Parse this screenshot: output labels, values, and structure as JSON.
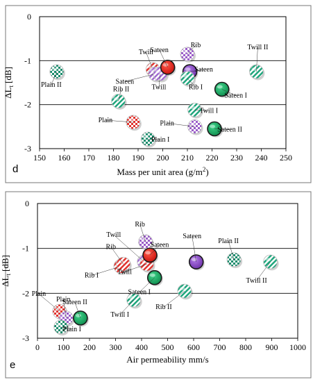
{
  "chart_data": [
    {
      "type": "scatter",
      "panel_label": "d",
      "xlabel": "Mass per unit area (g/m",
      "xlabel_sup": "2",
      "xlabel_end": ")",
      "ylabel": "ΔL",
      "ylabel_sub": "t",
      "ylabel_unit": "[dB]",
      "xlim": [
        150,
        250
      ],
      "ylim": [
        -3,
        0
      ],
      "xticks": [
        "150",
        "160",
        "170",
        "180",
        "190",
        "200",
        "210",
        "220",
        "230",
        "240",
        "250"
      ],
      "yticks": [
        "0",
        "-1",
        "-2",
        "-3"
      ],
      "grid": "horizontal",
      "points": [
        {
          "label": "Plain II",
          "x": 157,
          "y": -1.25,
          "pattern": "check-teal",
          "tx": -8,
          "ty": 22
        },
        {
          "label": "Rib II",
          "x": 182,
          "y": -1.92,
          "pattern": "stripe-teal",
          "tx": 4,
          "ty": -14
        },
        {
          "label": "Plain",
          "x": 188,
          "y": -2.4,
          "pattern": "check-red",
          "tx": -40,
          "ty": 0
        },
        {
          "label": "Plain I",
          "x": 194,
          "y": -2.78,
          "pattern": "check-teal",
          "tx": 18,
          "ty": 4
        },
        {
          "label": "Twill",
          "x": 196,
          "y": -1.2,
          "pattern": "stripe-red",
          "tx": -10,
          "ty": -22
        },
        {
          "label": "Sateen",
          "x": 197,
          "y": -1.3,
          "pattern": "stripe-purple",
          "tx": -44,
          "ty": 14
        },
        {
          "label": "Twill",
          "x": 199,
          "y": -1.3,
          "pattern": "stripe-purple",
          "tx": -2,
          "ty": 22
        },
        {
          "label": "Sateen",
          "x": 202,
          "y": -1.15,
          "pattern": "solid-red",
          "tx": -12,
          "ty": -22
        },
        {
          "label": "Rib",
          "x": 210,
          "y": -0.85,
          "pattern": "check-purple",
          "tx": 12,
          "ty": -10
        },
        {
          "label": "Sateen",
          "x": 211,
          "y": -1.25,
          "pattern": "solid-purple",
          "tx": 20,
          "ty": 0
        },
        {
          "label": "Rib I",
          "x": 210,
          "y": -1.4,
          "pattern": "stripe-teal",
          "tx": 12,
          "ty": 16
        },
        {
          "label": "Twill I",
          "x": 213,
          "y": -2.12,
          "pattern": "stripe-teal",
          "tx": 20,
          "ty": 4
        },
        {
          "label": "Plain",
          "x": 213,
          "y": -2.5,
          "pattern": "check-purple",
          "tx": -40,
          "ty": -2
        },
        {
          "label": "Sateen II",
          "x": 221,
          "y": -2.55,
          "pattern": "solid-green",
          "tx": 22,
          "ty": 4
        },
        {
          "label": "Sateen I",
          "x": 224,
          "y": -1.65,
          "pattern": "solid-green",
          "tx": 20,
          "ty": 12
        },
        {
          "label": "Twill II",
          "x": 238,
          "y": -1.25,
          "pattern": "stripe-teal",
          "tx": 2,
          "ty": -32
        }
      ]
    },
    {
      "type": "scatter",
      "panel_label": "e",
      "xlabel": "Air permeability mm/s",
      "ylabel": "ΔL",
      "ylabel_sub": "t",
      "ylabel_unit": "[dB]",
      "xlim": [
        0,
        1000
      ],
      "ylim": [
        -3,
        0
      ],
      "xticks": [
        "0",
        "100",
        "200",
        "300",
        "400",
        "500",
        "600",
        "700",
        "800",
        "900",
        "1000"
      ],
      "yticks": [
        "0",
        "-1",
        "-2",
        "-3"
      ],
      "grid": "horizontal",
      "points": [
        {
          "label": "Plain",
          "x": 85,
          "y": -2.4,
          "pattern": "check-red",
          "tx": -30,
          "ty": -22
        },
        {
          "label": "Plain",
          "x": 110,
          "y": -2.55,
          "pattern": "check-purple",
          "tx": -4,
          "ty": -24
        },
        {
          "label": "Plain I",
          "x": 90,
          "y": -2.75,
          "pattern": "check-teal",
          "tx": 16,
          "ty": 6
        },
        {
          "label": "Sateen II",
          "x": 165,
          "y": -2.55,
          "pattern": "solid-green",
          "tx": -8,
          "ty": -20
        },
        {
          "label": "Rib I",
          "x": 320,
          "y": -1.4,
          "pattern": "stripe-red",
          "tx": -42,
          "ty": 16
        },
        {
          "label": "Rib",
          "x": 330,
          "y": -1.35,
          "pattern": "stripe-red",
          "tx": -18,
          "ty": -22
        },
        {
          "label": "Twill I",
          "x": 370,
          "y": -2.15,
          "pattern": "stripe-teal",
          "tx": -20,
          "ty": 24
        },
        {
          "label": "Rib",
          "x": 415,
          "y": -0.85,
          "pattern": "check-purple",
          "tx": -8,
          "ty": -22
        },
        {
          "label": "Twill",
          "x": 410,
          "y": -1.3,
          "pattern": "stripe-purple",
          "tx": -44,
          "ty": -36
        },
        {
          "label": "Twill",
          "x": 420,
          "y": -1.35,
          "pattern": "stripe-red",
          "tx": -32,
          "ty": 14
        },
        {
          "label": "Sateen",
          "x": 432,
          "y": -1.15,
          "pattern": "solid-red",
          "tx": 14,
          "ty": -12
        },
        {
          "label": "Sateen I",
          "x": 450,
          "y": -1.65,
          "pattern": "solid-green",
          "tx": -22,
          "ty": 24
        },
        {
          "label": "Rib II",
          "x": 565,
          "y": -1.95,
          "pattern": "stripe-teal",
          "tx": -30,
          "ty": 26
        },
        {
          "label": "Sateen",
          "x": 610,
          "y": -1.3,
          "pattern": "solid-purple",
          "tx": -6,
          "ty": -34
        },
        {
          "label": "Plain II",
          "x": 755,
          "y": -1.25,
          "pattern": "check-teal",
          "tx": -8,
          "ty": -24
        },
        {
          "label": "Twill II",
          "x": 895,
          "y": -1.3,
          "pattern": "stripe-teal",
          "tx": -20,
          "ty": 30
        }
      ]
    }
  ]
}
